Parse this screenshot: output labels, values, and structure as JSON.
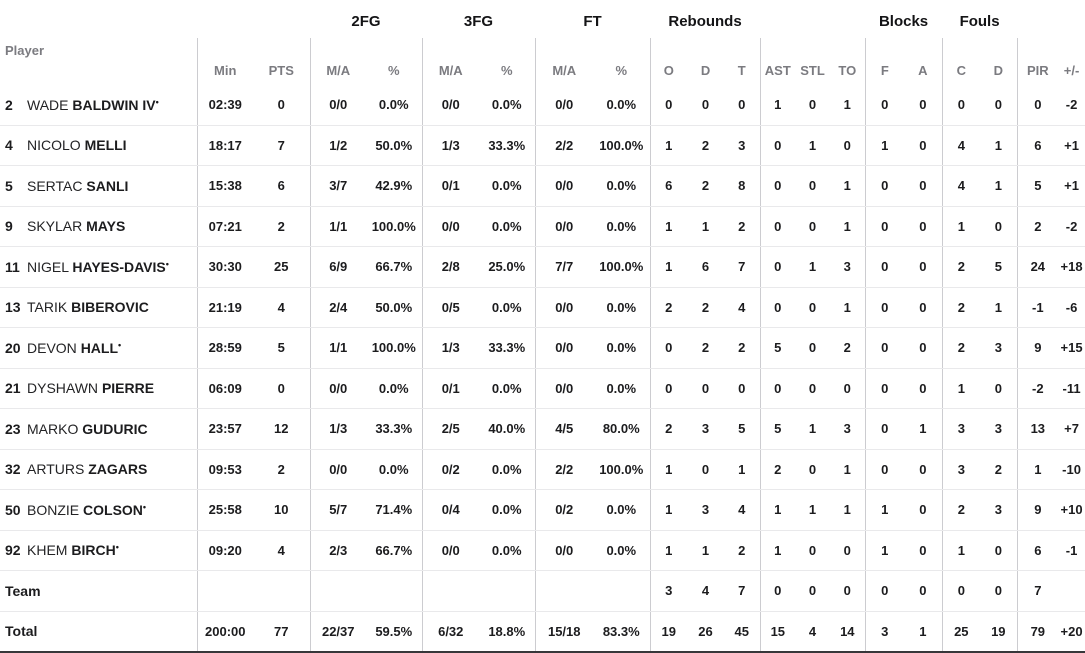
{
  "table": {
    "starter_marker": "•",
    "groups": [
      "2FG",
      "3FG",
      "FT",
      "Rebounds",
      "Blocks",
      "Fouls"
    ],
    "col_headers": [
      "Player",
      "Min",
      "PTS",
      "M/A",
      "%",
      "M/A",
      "%",
      "M/A",
      "%",
      "O",
      "D",
      "T",
      "AST",
      "STL",
      "TO",
      "F",
      "A",
      "C",
      "D",
      "PIR",
      "+/-"
    ]
  },
  "rows": [
    {
      "type": "player",
      "number": "2",
      "first": "WADE",
      "last": "BALDWIN IV",
      "starter": true,
      "stats": [
        "02:39",
        "0",
        "0/0",
        "0.0%",
        "0/0",
        "0.0%",
        "0/0",
        "0.0%",
        "0",
        "0",
        "0",
        "1",
        "0",
        "1",
        "0",
        "0",
        "0",
        "0",
        "0",
        "-2"
      ]
    },
    {
      "type": "player",
      "number": "4",
      "first": "NICOLO",
      "last": "MELLI",
      "starter": false,
      "stats": [
        "18:17",
        "7",
        "1/2",
        "50.0%",
        "1/3",
        "33.3%",
        "2/2",
        "100.0%",
        "1",
        "2",
        "3",
        "0",
        "1",
        "0",
        "1",
        "0",
        "4",
        "1",
        "6",
        "+1"
      ]
    },
    {
      "type": "player",
      "number": "5",
      "first": "SERTAC",
      "last": "SANLI",
      "starter": false,
      "stats": [
        "15:38",
        "6",
        "3/7",
        "42.9%",
        "0/1",
        "0.0%",
        "0/0",
        "0.0%",
        "6",
        "2",
        "8",
        "0",
        "0",
        "1",
        "0",
        "0",
        "4",
        "1",
        "5",
        "+1"
      ]
    },
    {
      "type": "player",
      "number": "9",
      "first": "SKYLAR",
      "last": "MAYS",
      "starter": false,
      "stats": [
        "07:21",
        "2",
        "1/1",
        "100.0%",
        "0/0",
        "0.0%",
        "0/0",
        "0.0%",
        "1",
        "1",
        "2",
        "0",
        "0",
        "1",
        "0",
        "0",
        "1",
        "0",
        "2",
        "-2"
      ]
    },
    {
      "type": "player",
      "number": "11",
      "first": "NIGEL",
      "last": "HAYES-DAVIS",
      "starter": true,
      "stats": [
        "30:30",
        "25",
        "6/9",
        "66.7%",
        "2/8",
        "25.0%",
        "7/7",
        "100.0%",
        "1",
        "6",
        "7",
        "0",
        "1",
        "3",
        "0",
        "0",
        "2",
        "5",
        "24",
        "+18"
      ]
    },
    {
      "type": "player",
      "number": "13",
      "first": "TARIK",
      "last": "BIBEROVIC",
      "starter": false,
      "stats": [
        "21:19",
        "4",
        "2/4",
        "50.0%",
        "0/5",
        "0.0%",
        "0/0",
        "0.0%",
        "2",
        "2",
        "4",
        "0",
        "0",
        "1",
        "0",
        "0",
        "2",
        "1",
        "-1",
        "-6"
      ]
    },
    {
      "type": "player",
      "number": "20",
      "first": "DEVON",
      "last": "HALL",
      "starter": true,
      "stats": [
        "28:59",
        "5",
        "1/1",
        "100.0%",
        "1/3",
        "33.3%",
        "0/0",
        "0.0%",
        "0",
        "2",
        "2",
        "5",
        "0",
        "2",
        "0",
        "0",
        "2",
        "3",
        "9",
        "+15"
      ]
    },
    {
      "type": "player",
      "number": "21",
      "first": "DYSHAWN",
      "last": "PIERRE",
      "starter": false,
      "stats": [
        "06:09",
        "0",
        "0/0",
        "0.0%",
        "0/1",
        "0.0%",
        "0/0",
        "0.0%",
        "0",
        "0",
        "0",
        "0",
        "0",
        "0",
        "0",
        "0",
        "1",
        "0",
        "-2",
        "-11"
      ]
    },
    {
      "type": "player",
      "number": "23",
      "first": "MARKO",
      "last": "GUDURIC",
      "starter": false,
      "stats": [
        "23:57",
        "12",
        "1/3",
        "33.3%",
        "2/5",
        "40.0%",
        "4/5",
        "80.0%",
        "2",
        "3",
        "5",
        "5",
        "1",
        "3",
        "0",
        "1",
        "3",
        "3",
        "13",
        "+7"
      ]
    },
    {
      "type": "player",
      "number": "32",
      "first": "ARTURS",
      "last": "ZAGARS",
      "starter": false,
      "stats": [
        "09:53",
        "2",
        "0/0",
        "0.0%",
        "0/2",
        "0.0%",
        "2/2",
        "100.0%",
        "1",
        "0",
        "1",
        "2",
        "0",
        "1",
        "0",
        "0",
        "3",
        "2",
        "1",
        "-10"
      ]
    },
    {
      "type": "player",
      "number": "50",
      "first": "BONZIE",
      "last": "COLSON",
      "starter": true,
      "stats": [
        "25:58",
        "10",
        "5/7",
        "71.4%",
        "0/4",
        "0.0%",
        "0/2",
        "0.0%",
        "1",
        "3",
        "4",
        "1",
        "1",
        "1",
        "1",
        "0",
        "2",
        "3",
        "9",
        "+10"
      ]
    },
    {
      "type": "player",
      "number": "92",
      "first": "KHEM",
      "last": "BIRCH",
      "starter": true,
      "stats": [
        "09:20",
        "4",
        "2/3",
        "66.7%",
        "0/0",
        "0.0%",
        "0/0",
        "0.0%",
        "1",
        "1",
        "2",
        "1",
        "0",
        "0",
        "1",
        "0",
        "1",
        "0",
        "6",
        "-1"
      ]
    },
    {
      "type": "team",
      "label": "Team",
      "stats": [
        "",
        "",
        "",
        "",
        "",
        "",
        "",
        "",
        "3",
        "4",
        "7",
        "0",
        "0",
        "0",
        "0",
        "0",
        "0",
        "0",
        "7",
        ""
      ]
    },
    {
      "type": "total",
      "label": "Total",
      "stats": [
        "200:00",
        "77",
        "22/37",
        "59.5%",
        "6/32",
        "18.8%",
        "15/18",
        "83.3%",
        "19",
        "26",
        "45",
        "15",
        "4",
        "14",
        "3",
        "1",
        "25",
        "19",
        "79",
        "+20"
      ]
    }
  ]
}
